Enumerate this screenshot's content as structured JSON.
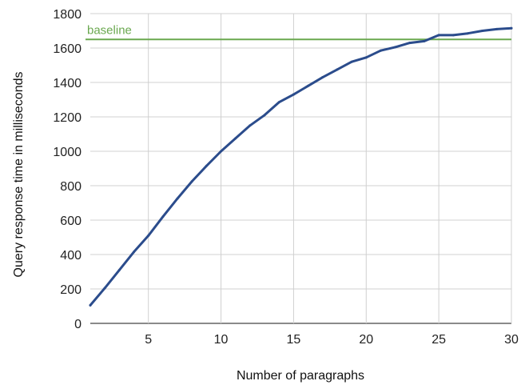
{
  "chart_data": {
    "type": "line",
    "title": "",
    "xlabel": "Number of paragraphs",
    "ylabel": "Query response time in milliseconds",
    "xlim": [
      1,
      30
    ],
    "ylim": [
      0,
      1800
    ],
    "xticks": [
      5,
      10,
      15,
      20,
      25,
      30
    ],
    "yticks": [
      0,
      200,
      400,
      600,
      800,
      1000,
      1200,
      1400,
      1600,
      1800
    ],
    "grid": true,
    "series": [
      {
        "color": "#2b4c8c",
        "x": [
          1,
          2,
          3,
          4,
          5,
          6,
          7,
          8,
          9,
          10,
          11,
          12,
          13,
          14,
          15,
          16,
          17,
          18,
          19,
          20,
          21,
          22,
          23,
          24,
          25,
          26,
          27,
          28,
          29,
          30
        ],
        "y": [
          105,
          205,
          310,
          415,
          510,
          620,
          725,
          825,
          915,
          1000,
          1075,
          1150,
          1210,
          1285,
          1330,
          1380,
          1430,
          1475,
          1520,
          1545,
          1585,
          1605,
          1630,
          1640,
          1675,
          1675,
          1685,
          1700,
          1710,
          1715
        ]
      }
    ],
    "reference_line": {
      "name": "baseline",
      "y": 1650,
      "color": "#6aa84f"
    }
  }
}
